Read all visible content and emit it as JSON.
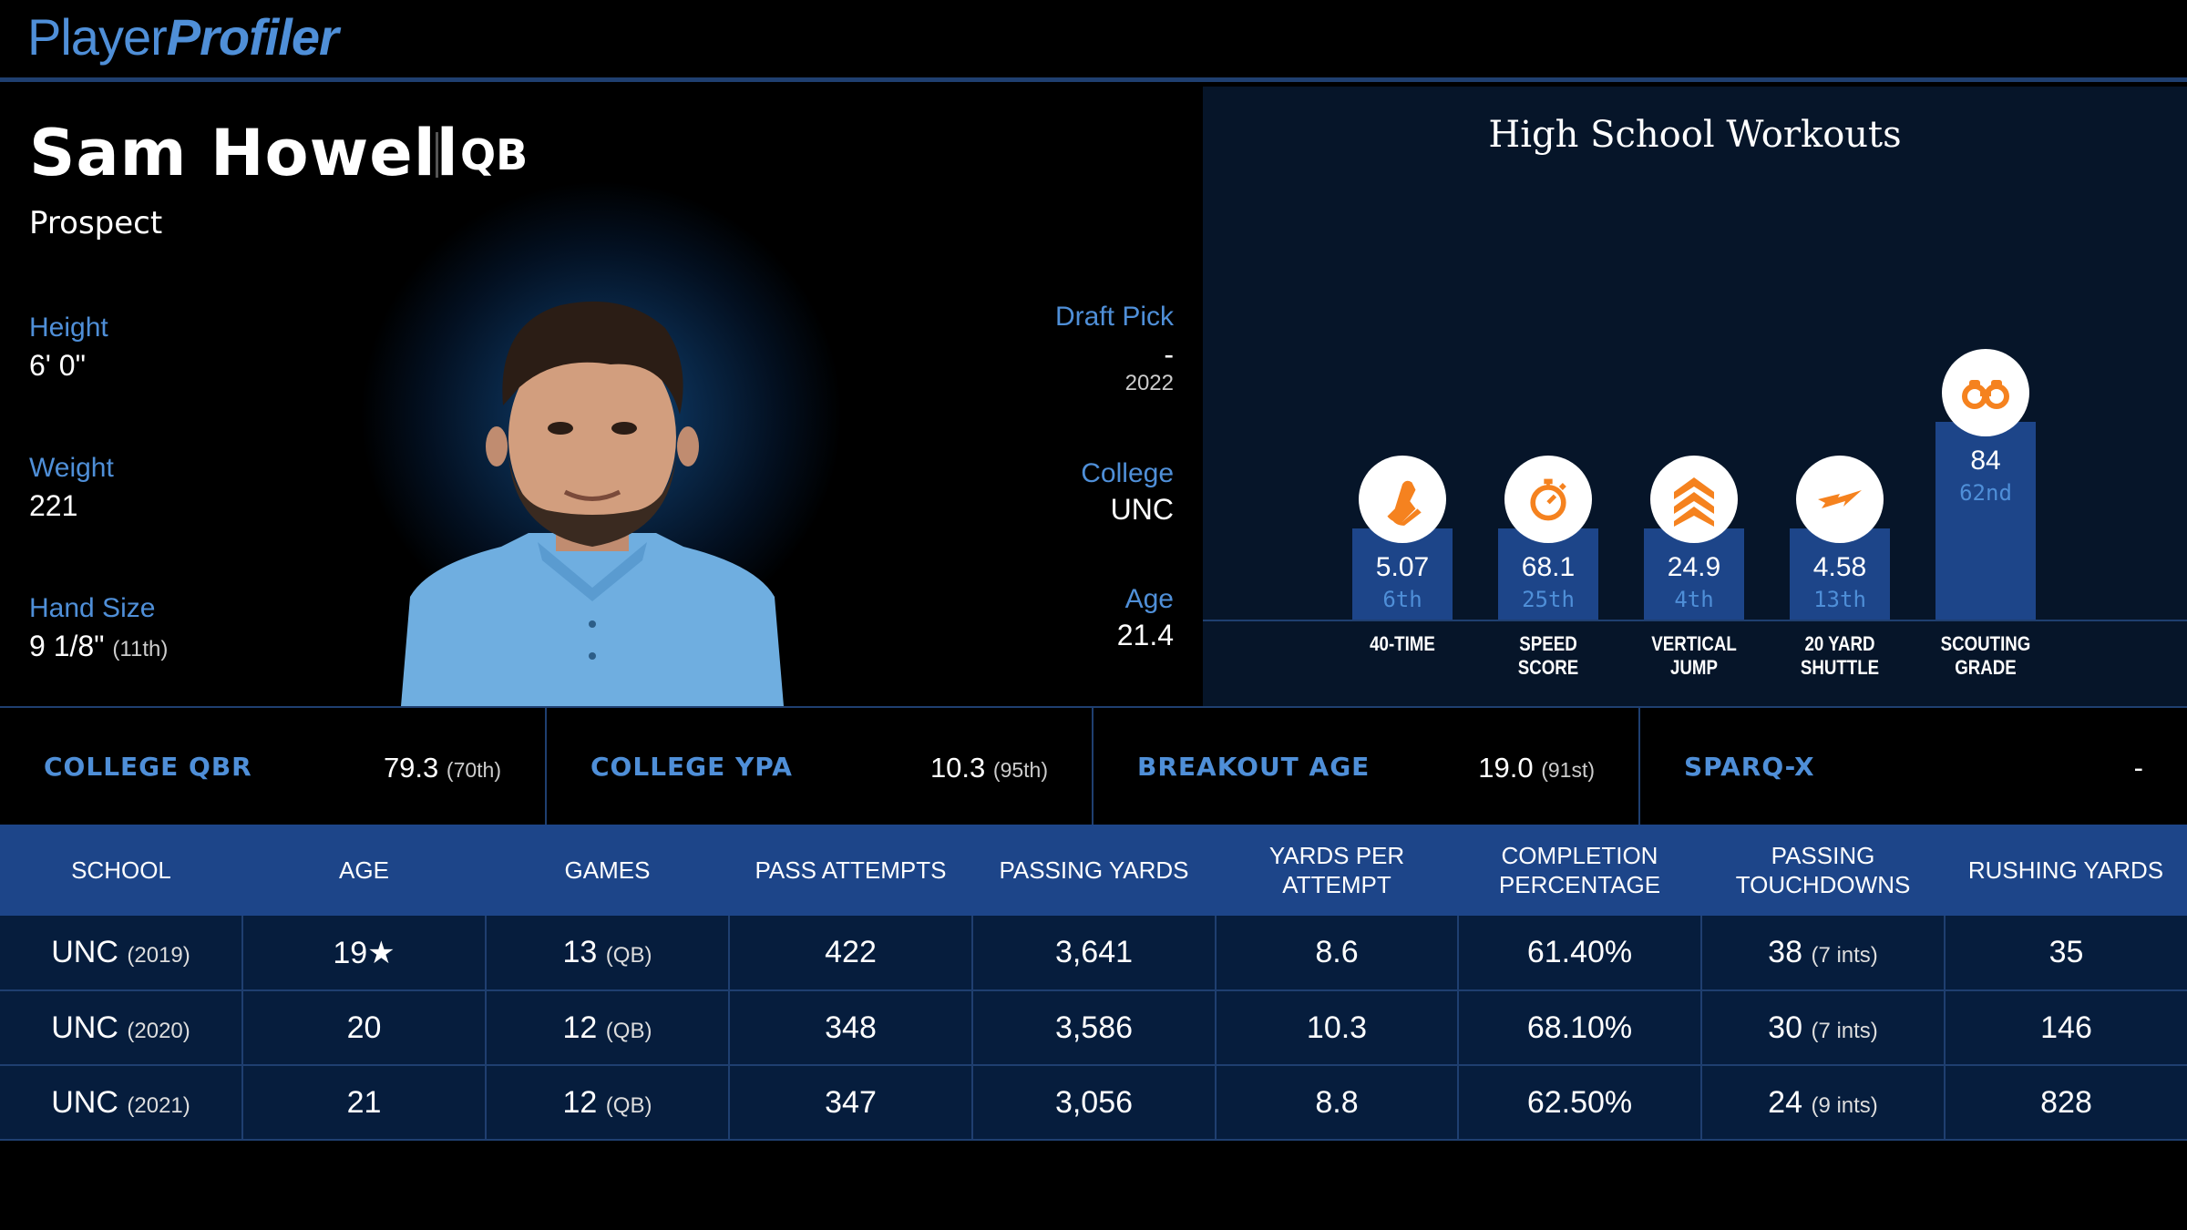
{
  "brand": {
    "part1": "Player",
    "part2": "Profiler"
  },
  "player": {
    "name": "Sam Howell",
    "position": "QB",
    "status": "Prospect",
    "left_stats": [
      {
        "label": "Height",
        "value": "6' 0\"",
        "sub": ""
      },
      {
        "label": "Weight",
        "value": "221",
        "sub": ""
      },
      {
        "label": "Hand Size",
        "value": "9 1/8\"",
        "sub": "(11th)"
      }
    ],
    "draft_pick": {
      "label": "Draft Pick",
      "value": "-",
      "year": "2022"
    },
    "college": {
      "label": "College",
      "value": "UNC"
    },
    "age": {
      "label": "Age",
      "value": "21.4"
    }
  },
  "workouts": {
    "title": "High School Workouts",
    "items": [
      {
        "value": "5.07",
        "percentile": "6th",
        "label_line1": "40-TIME",
        "label_line2": "",
        "icon": "shoe-icon",
        "percentile_num": 6
      },
      {
        "value": "68.1",
        "percentile": "25th",
        "label_line1": "SPEED",
        "label_line2": "SCORE",
        "icon": "stopwatch-icon",
        "percentile_num": 25
      },
      {
        "value": "24.9",
        "percentile": "4th",
        "label_line1": "VERTICAL",
        "label_line2": "JUMP",
        "icon": "chevrons-up-icon",
        "percentile_num": 4
      },
      {
        "value": "4.58",
        "percentile": "13th",
        "label_line1": "20 YARD",
        "label_line2": "SHUTTLE",
        "icon": "lightning-icon",
        "percentile_num": 13
      },
      {
        "value": "84",
        "percentile": "62nd",
        "label_line1": "SCOUTING",
        "label_line2": "GRADE",
        "icon": "binoculars-icon",
        "percentile_num": 62
      }
    ],
    "colors": {
      "bar": "#1d4589",
      "icon": "#f5821f"
    }
  },
  "metrics": [
    {
      "label": "COLLEGE QBR",
      "value": "79.3",
      "sub": "(70th)"
    },
    {
      "label": "COLLEGE YPA",
      "value": "10.3",
      "sub": "(95th)"
    },
    {
      "label": "BREAKOUT AGE",
      "value": "19.0",
      "sub": "(91st)"
    },
    {
      "label": "SPARQ-X",
      "value": "-",
      "sub": ""
    }
  ],
  "table": {
    "headers": [
      "School",
      "Age",
      "Games",
      "Pass Attempts",
      "Passing Yards",
      "Yards Per Attempt",
      "Completion Percentage",
      "Passing Touchdowns",
      "Rushing Yards"
    ],
    "rows": [
      {
        "school": "UNC",
        "year": "(2019)",
        "age": "19★",
        "games": "13",
        "games_pos": "(QB)",
        "att": "422",
        "yds": "3,641",
        "ypa": "8.6",
        "pct": "61.40%",
        "td": "38",
        "ints": "(7 ints)",
        "rush": "35"
      },
      {
        "school": "UNC",
        "year": "(2020)",
        "age": "20",
        "games": "12",
        "games_pos": "(QB)",
        "att": "348",
        "yds": "3,586",
        "ypa": "10.3",
        "pct": "68.10%",
        "td": "30",
        "ints": "(7 ints)",
        "rush": "146"
      },
      {
        "school": "UNC",
        "year": "(2021)",
        "age": "21",
        "games": "12",
        "games_pos": "(QB)",
        "att": "347",
        "yds": "3,056",
        "ypa": "8.8",
        "pct": "62.50%",
        "td": "24",
        "ints": "(9 ints)",
        "rush": "828"
      }
    ]
  }
}
